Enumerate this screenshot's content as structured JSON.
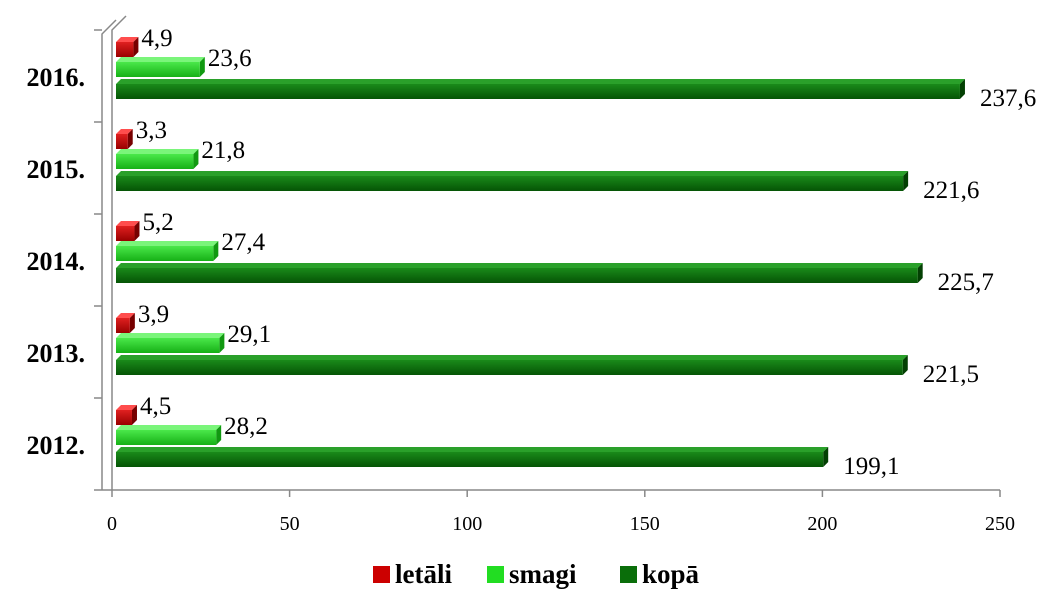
{
  "chart_data": {
    "type": "bar",
    "orientation": "horizontal",
    "categories": [
      "2012.",
      "2013.",
      "2014.",
      "2015.",
      "2016."
    ],
    "series": [
      {
        "name": "letāli",
        "values": [
          4.5,
          3.9,
          5.2,
          3.3,
          4.9
        ],
        "labels": [
          "4,5",
          "3,9",
          "5,2",
          "3,3",
          "4,9"
        ],
        "color": "#cc0000"
      },
      {
        "name": "smagi",
        "values": [
          28.2,
          29.1,
          27.4,
          21.8,
          23.6
        ],
        "labels": [
          "28,2",
          "29,1",
          "27,4",
          "21,8",
          "23,6"
        ],
        "color": "#22cc22"
      },
      {
        "name": "kopā",
        "values": [
          199.1,
          221.5,
          225.7,
          221.6,
          237.6
        ],
        "labels": [
          "199,1",
          "221,5",
          "225,7",
          "221,6",
          "237,6"
        ],
        "color": "#0a6e0a"
      }
    ],
    "xlim": [
      0,
      250
    ],
    "xticks": [
      "0",
      "50",
      "100",
      "150",
      "200",
      "250"
    ],
    "grid": false,
    "legend_position": "bottom"
  }
}
